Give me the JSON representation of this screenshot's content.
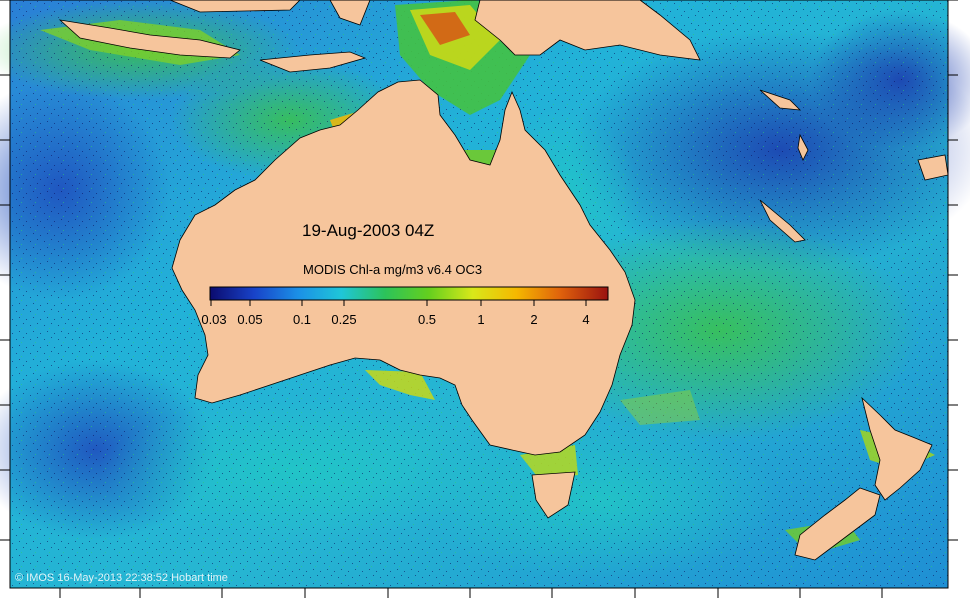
{
  "map": {
    "date_label": "19-Aug-2003 04Z",
    "colorbar_title": "MODIS Chl-a mg/m3 v6.4 OC3",
    "colorbar_ticks": [
      "0.03",
      "0.05",
      "0.1",
      "0.25",
      "0.5",
      "1",
      "2",
      "4"
    ],
    "credit": "© IMOS 16-May-2013 22:38:52 Hobart time",
    "colors": {
      "land": "#f6c59c",
      "ocean_low": "#1f5fc8",
      "ocean_mid": "#21b5d6",
      "ocean_high": "#3cc23a",
      "bloom": "#c8d818",
      "coast_bloom": "#c83a12"
    },
    "colorbar_stops": [
      "#0b0b6e",
      "#1842c8",
      "#1b8fe6",
      "#1fc6d8",
      "#2cc35a",
      "#64cf1e",
      "#d8e81a",
      "#f5b800",
      "#e0620c",
      "#9a1210"
    ]
  }
}
